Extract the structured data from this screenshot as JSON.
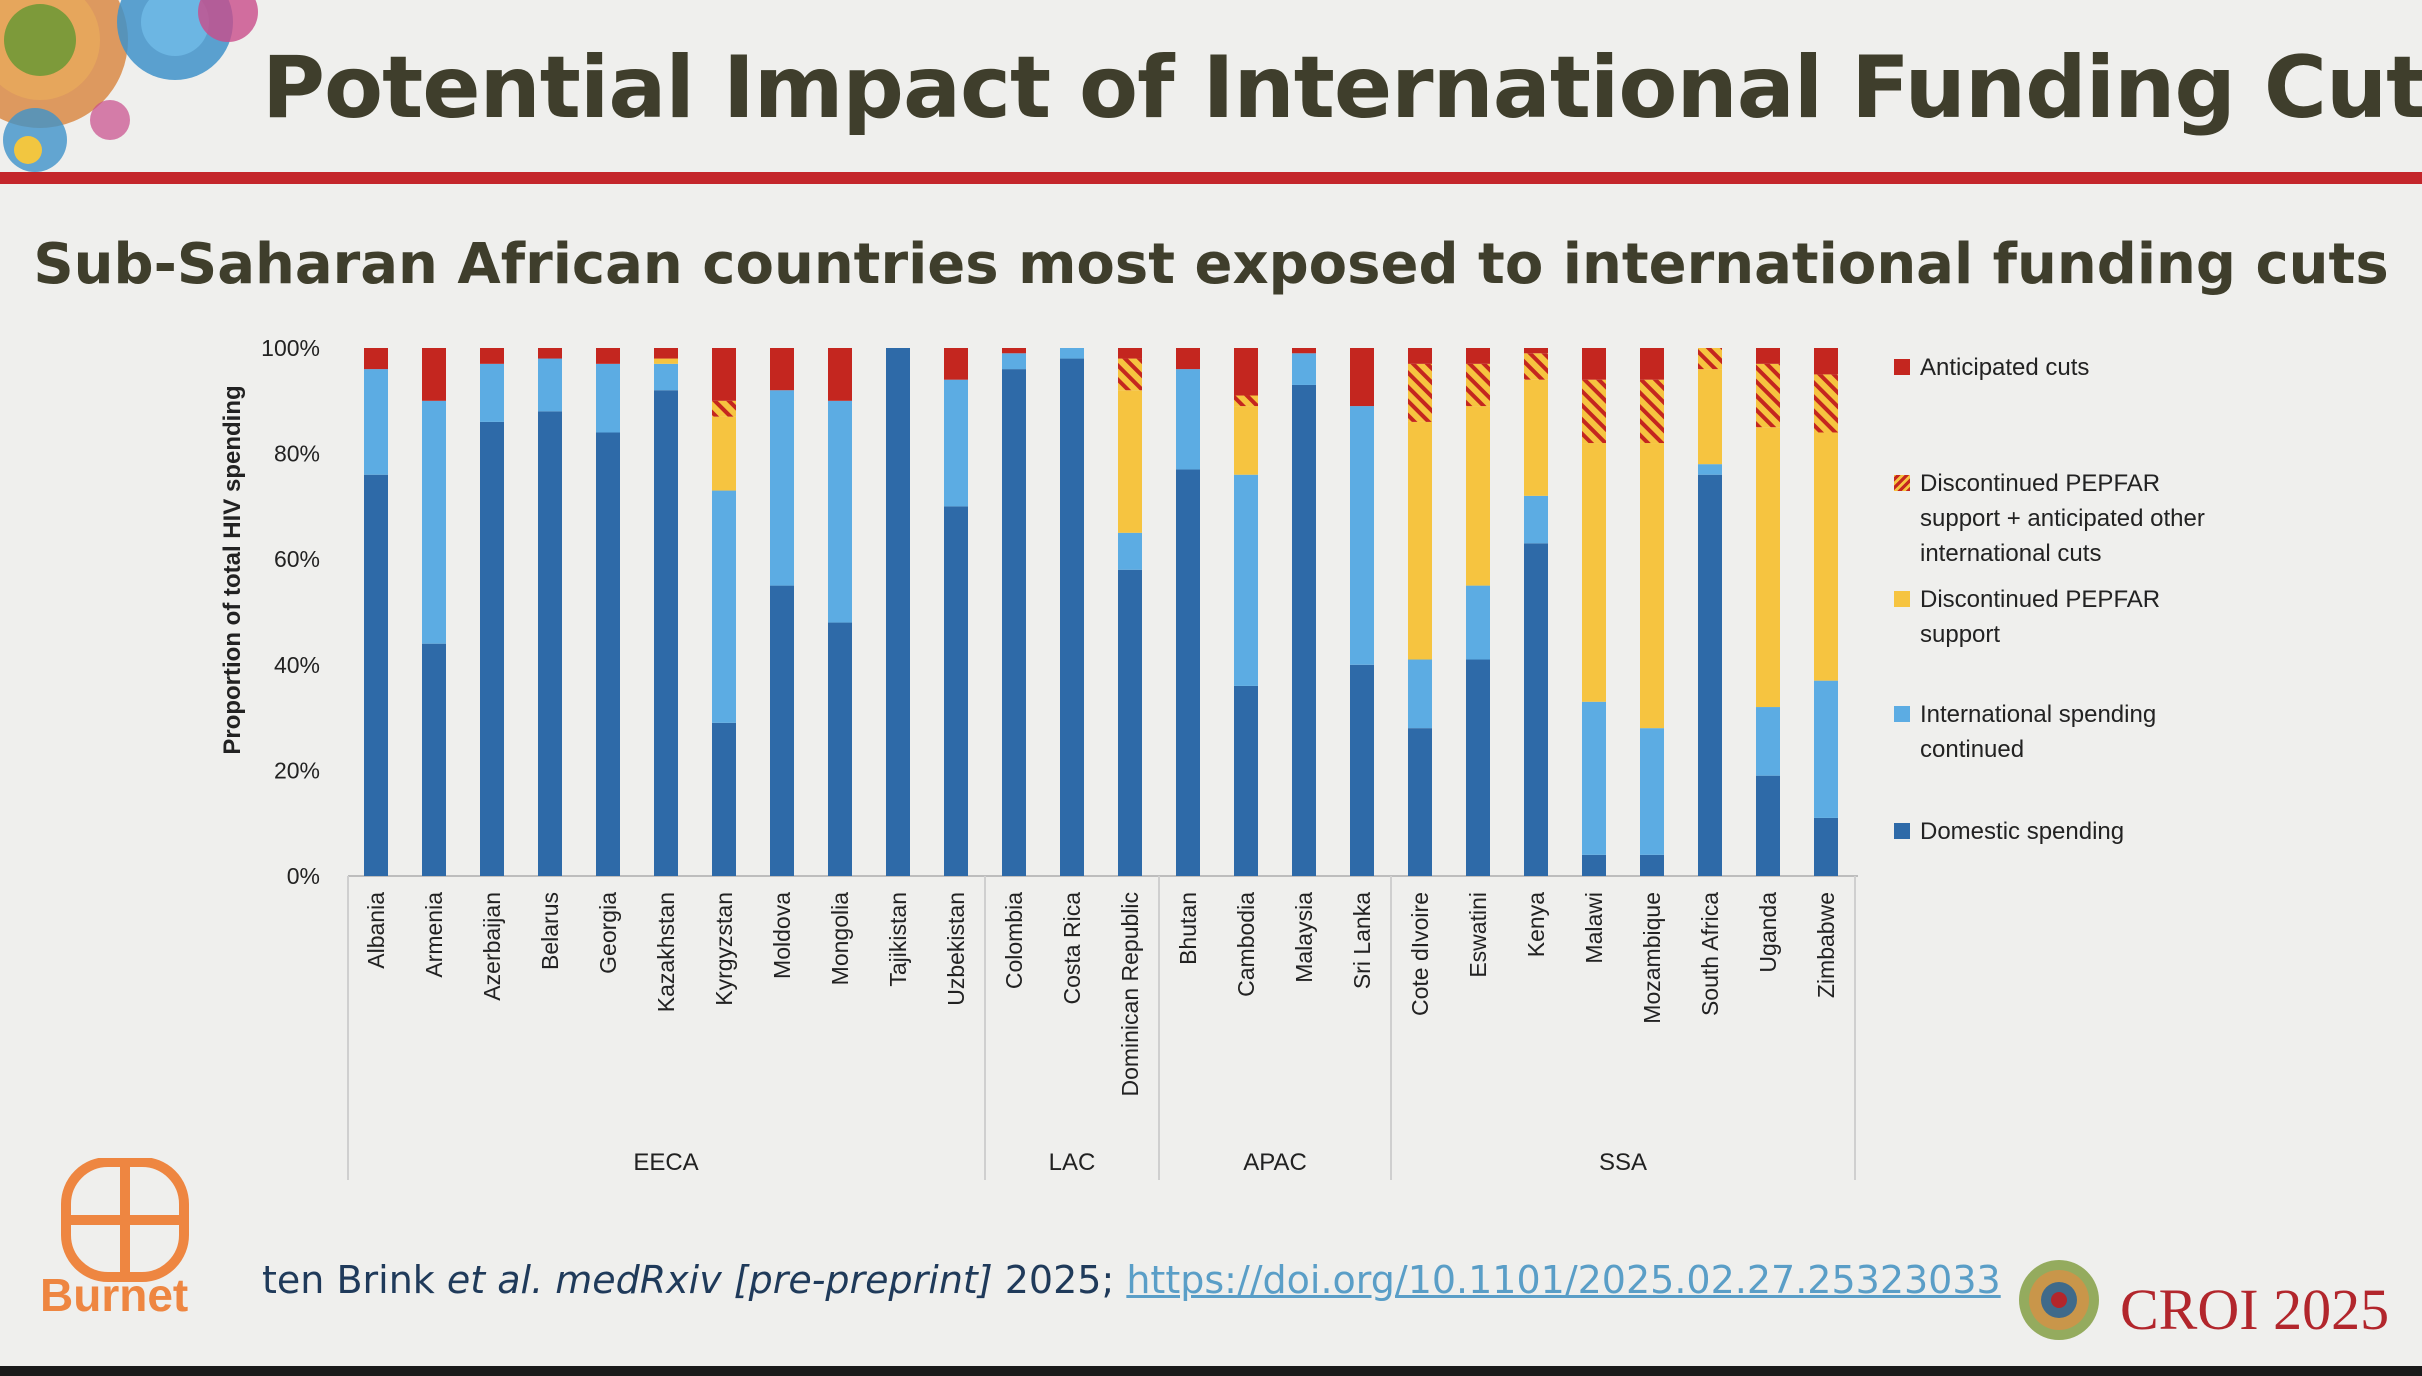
{
  "slide": {
    "title": "Potential Impact of International Funding Cuts",
    "subtitle": "Sub-Saharan African countries most exposed to international funding cuts",
    "brand_left": "Burnet",
    "citation_authors": "ten Brink ",
    "citation_etal": "et al. ",
    "citation_journal": "medRxiv [pre-preprint]",
    "citation_year": " 2025; ",
    "citation_link": "https://doi.org/10.1101/2025.02.27.25323033",
    "conference": "CROI 2025"
  },
  "colors": {
    "domestic": "#2e6aa8",
    "international_continued": "#5cace3",
    "discontinued_pepfar": "#f6c440",
    "discontinued_plus_cuts": "#f6c440",
    "anticipated_cuts": "#c4261f",
    "title_text": "#3f3e2c",
    "rule": "#c4262b"
  },
  "chart_data": {
    "type": "bar",
    "stacked": true,
    "ylabel": "Proportion of total HIV spending",
    "ylim": [
      0,
      100
    ],
    "yticks": [
      "0%",
      "20%",
      "40%",
      "60%",
      "80%",
      "100%"
    ],
    "categories": [
      "Albania",
      "Armenia",
      "Azerbaijan",
      "Belarus",
      "Georgia",
      "Kazakhstan",
      "Kyrgyzstan",
      "Moldova",
      "Mongolia",
      "Tajikistan",
      "Uzbekistan",
      "Colombia",
      "Costa Rica",
      "Dominican Republic",
      "Bhutan",
      "Cambodia",
      "Malaysia",
      "Sri Lanka",
      "Cote dIvoire",
      "Eswatini",
      "Kenya",
      "Malawi",
      "Mozambique",
      "South Africa",
      "Uganda",
      "Zimbabwe"
    ],
    "groups": [
      {
        "label": "EECA",
        "count": 11
      },
      {
        "label": "LAC",
        "count": 3
      },
      {
        "label": "APAC",
        "count": 4
      },
      {
        "label": "SSA",
        "count": 8
      }
    ],
    "series": [
      {
        "name": "Domestic spending",
        "values": [
          76,
          44,
          86,
          88,
          84,
          92,
          29,
          55,
          48,
          100,
          70,
          96,
          98,
          58,
          77,
          36,
          93,
          40,
          28,
          41,
          63,
          4,
          4,
          76,
          19,
          11
        ]
      },
      {
        "name": "International spending continued",
        "values": [
          20,
          46,
          11,
          10,
          13,
          5,
          44,
          37,
          42,
          0,
          24,
          3,
          2,
          7,
          19,
          40,
          6,
          49,
          13,
          14,
          9,
          29,
          24,
          2,
          13,
          26
        ]
      },
      {
        "name": "Discontinued PEPFAR support",
        "values": [
          0,
          0,
          0,
          0,
          0,
          1,
          14,
          0,
          0,
          0,
          0,
          0,
          0,
          27,
          0,
          13,
          0,
          0,
          45,
          34,
          22,
          49,
          54,
          18,
          53,
          47
        ]
      },
      {
        "name": "Discontinued PEPFAR support + anticipated other international cuts",
        "values": [
          0,
          0,
          0,
          0,
          0,
          0,
          3,
          0,
          0,
          0,
          0,
          0,
          0,
          6,
          0,
          2,
          0,
          0,
          11,
          8,
          5,
          12,
          12,
          4,
          12,
          11
        ]
      },
      {
        "name": "Anticipated cuts",
        "values": [
          4,
          10,
          3,
          2,
          3,
          2,
          10,
          8,
          10,
          0,
          6,
          1,
          0,
          2,
          4,
          9,
          1,
          11,
          3,
          3,
          1,
          6,
          6,
          0,
          3,
          5
        ]
      }
    ],
    "legend": {
      "placement": "right",
      "items": [
        {
          "label": "Anticipated cuts",
          "series": 4
        },
        {
          "label": "Discontinued PEPFAR support + anticipated other international cuts",
          "series": 3
        },
        {
          "label": "Discontinued PEPFAR support",
          "series": 2
        },
        {
          "label": "International spending continued",
          "series": 1
        },
        {
          "label": "Domestic spending",
          "series": 0
        }
      ]
    }
  }
}
